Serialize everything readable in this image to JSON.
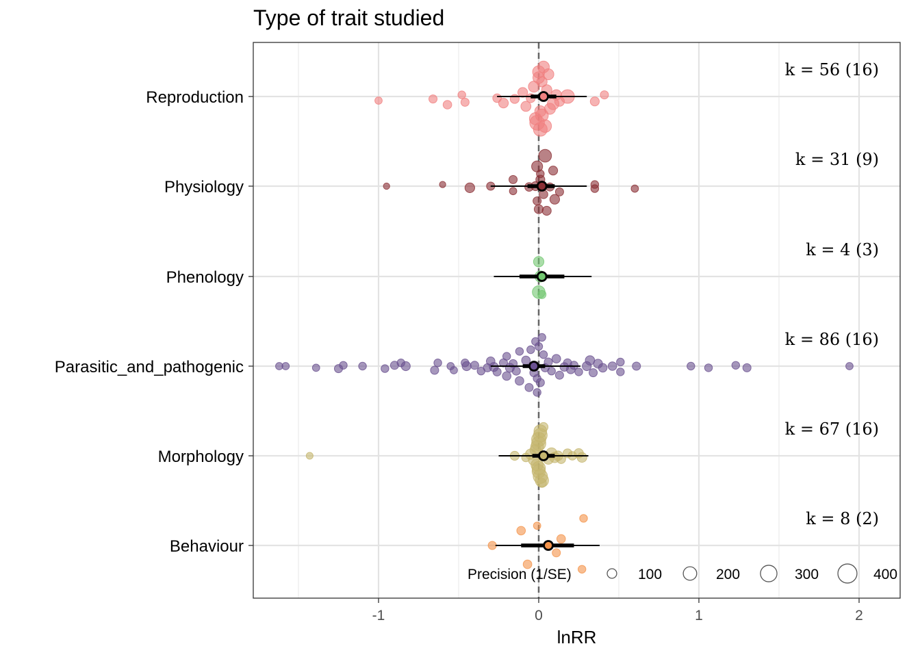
{
  "chart_data": {
    "type": "scatter",
    "subtype": "orchard-plot",
    "title": "Type of trait studied",
    "xlabel": "lnRR",
    "ylabel": "",
    "xlim": [
      -1.78,
      2.25
    ],
    "x_ticks": [
      -1,
      0,
      1,
      2
    ],
    "x_tick_labels": [
      "-1",
      "0",
      "1",
      "2"
    ],
    "grid": true,
    "reference_line": {
      "x": 0,
      "style": "dashed"
    },
    "categories": [
      "Reproduction",
      "Physiology",
      "Phenology",
      "Parasitic_and_pathogenic",
      "Morphology",
      "Behaviour"
    ],
    "series": [
      {
        "name": "Reproduction",
        "color": "#F08080",
        "k_label": "k = 56 (16)",
        "estimate": 0.03,
        "ci": [
          -0.05,
          0.11
        ],
        "pi": [
          -0.26,
          0.3
        ],
        "points": [
          [
            -1.0,
            0.5,
            40
          ],
          [
            -0.66,
            0.3,
            50
          ],
          [
            -0.57,
            1.0,
            55
          ],
          [
            -0.48,
            -0.2,
            45
          ],
          [
            -0.46,
            0.7,
            50
          ],
          [
            -0.26,
            0.2,
            55
          ],
          [
            -0.22,
            0.8,
            70
          ],
          [
            -0.15,
            0.3,
            60
          ],
          [
            -0.1,
            -0.5,
            70
          ],
          [
            -0.08,
            1.2,
            75
          ],
          [
            -0.05,
            0.2,
            60
          ],
          [
            -0.03,
            -1.2,
            90
          ],
          [
            -0.02,
            2.7,
            110
          ],
          [
            -0.01,
            3.2,
            160
          ],
          [
            0.0,
            -2.3,
            100
          ],
          [
            0.0,
            -3.0,
            110
          ],
          [
            0.01,
            4.0,
            140
          ],
          [
            0.01,
            1.8,
            90
          ],
          [
            0.02,
            -1.8,
            80
          ],
          [
            0.02,
            2.3,
            120
          ],
          [
            0.03,
            -3.6,
            100
          ],
          [
            0.04,
            3.6,
            120
          ],
          [
            0.05,
            -0.8,
            80
          ],
          [
            0.06,
            -2.7,
            90
          ],
          [
            0.07,
            1.5,
            90
          ],
          [
            0.09,
            0.9,
            100
          ],
          [
            0.11,
            -0.2,
            80
          ],
          [
            0.13,
            0.6,
            70
          ],
          [
            0.18,
            0.0,
            140
          ],
          [
            0.35,
            0.6,
            60
          ],
          [
            0.41,
            -0.2,
            50
          ]
        ]
      },
      {
        "name": "Physiology",
        "color": "#8B2F35",
        "k_label": "k = 31 (9)",
        "estimate": 0.02,
        "ci": [
          -0.07,
          0.1
        ],
        "pi": [
          -0.3,
          0.3
        ],
        "points": [
          [
            -0.95,
            0.0,
            30
          ],
          [
            -0.6,
            -0.2,
            30
          ],
          [
            -0.43,
            0.2,
            70
          ],
          [
            -0.3,
            0.0,
            50
          ],
          [
            -0.16,
            0.6,
            40
          ],
          [
            -0.16,
            -0.8,
            50
          ],
          [
            -0.06,
            0.1,
            55
          ],
          [
            -0.02,
            0.0,
            60
          ],
          [
            -0.01,
            -2.4,
            90
          ],
          [
            -0.01,
            1.8,
            50
          ],
          [
            0.0,
            2.8,
            60
          ],
          [
            0.01,
            -0.8,
            60
          ],
          [
            0.01,
            -1.5,
            45
          ],
          [
            0.03,
            1.0,
            55
          ],
          [
            0.04,
            -3.7,
            120
          ],
          [
            0.05,
            3.0,
            60
          ],
          [
            0.07,
            0.1,
            50
          ],
          [
            0.09,
            -1.9,
            60
          ],
          [
            0.1,
            1.6,
            70
          ],
          [
            0.13,
            0.7,
            50
          ],
          [
            0.35,
            0.3,
            45
          ],
          [
            0.35,
            -0.2,
            45
          ],
          [
            0.6,
            0.3,
            40
          ]
        ]
      },
      {
        "name": "Phenology",
        "color": "#72C770",
        "k_label": "k = 4 (3)",
        "estimate": 0.02,
        "ci": [
          -0.12,
          0.16
        ],
        "pi": [
          -0.28,
          0.33
        ],
        "points": [
          [
            0.0,
            1.9,
            120
          ],
          [
            0.0,
            -1.8,
            80
          ],
          [
            0.01,
            0.0,
            90
          ],
          [
            0.02,
            2.2,
            50
          ]
        ]
      },
      {
        "name": "Parasitic_and_pathogenic",
        "color": "#6A5190",
        "k_label": "k = 86 (16)",
        "estimate": -0.03,
        "ci": [
          -0.1,
          0.04
        ],
        "pi": [
          -0.3,
          0.26
        ],
        "points": [
          [
            -1.62,
            0.0,
            40
          ],
          [
            -1.58,
            0.0,
            40
          ],
          [
            -1.39,
            0.2,
            40
          ],
          [
            -1.25,
            0.3,
            50
          ],
          [
            -1.22,
            -0.1,
            45
          ],
          [
            -1.1,
            0.0,
            45
          ],
          [
            -0.96,
            0.3,
            45
          ],
          [
            -0.9,
            -0.1,
            50
          ],
          [
            -0.86,
            -0.4,
            45
          ],
          [
            -0.83,
            0.0,
            60
          ],
          [
            -0.65,
            0.5,
            50
          ],
          [
            -0.63,
            -0.4,
            45
          ],
          [
            -0.55,
            0.0,
            40
          ],
          [
            -0.53,
            0.5,
            40
          ],
          [
            -0.46,
            -0.4,
            45
          ],
          [
            -0.45,
            0.0,
            60
          ],
          [
            -0.4,
            -0.1,
            50
          ],
          [
            -0.36,
            0.6,
            45
          ],
          [
            -0.32,
            0.2,
            50
          ],
          [
            -0.3,
            -0.6,
            55
          ],
          [
            -0.28,
            0.1,
            60
          ],
          [
            -0.26,
            0.7,
            50
          ],
          [
            -0.22,
            -0.4,
            50
          ],
          [
            -0.2,
            1.2,
            55
          ],
          [
            -0.2,
            -1.2,
            45
          ],
          [
            -0.18,
            0.2,
            60
          ],
          [
            -0.16,
            -0.3,
            50
          ],
          [
            -0.14,
            0.6,
            50
          ],
          [
            -0.12,
            1.8,
            55
          ],
          [
            -0.12,
            -1.8,
            45
          ],
          [
            -0.08,
            -0.7,
            55
          ],
          [
            -0.06,
            2.6,
            50
          ],
          [
            -0.05,
            -2.0,
            45
          ],
          [
            -0.03,
            0.8,
            50
          ],
          [
            -0.02,
            -3.0,
            45
          ],
          [
            -0.01,
            3.2,
            45
          ],
          [
            -0.01,
            1.5,
            45
          ],
          [
            0.0,
            -2.4,
            45
          ],
          [
            0.01,
            2.0,
            50
          ],
          [
            0.02,
            -3.5,
            45
          ],
          [
            0.03,
            -1.4,
            45
          ],
          [
            0.04,
            0.2,
            50
          ],
          [
            0.06,
            -0.5,
            50
          ],
          [
            0.08,
            0.6,
            45
          ],
          [
            0.11,
            -0.9,
            55
          ],
          [
            0.13,
            1.1,
            50
          ],
          [
            0.16,
            0.1,
            55
          ],
          [
            0.18,
            -0.4,
            50
          ],
          [
            0.2,
            0.4,
            55
          ],
          [
            0.22,
            -0.1,
            50
          ],
          [
            0.25,
            0.7,
            45
          ],
          [
            0.3,
            0.0,
            60
          ],
          [
            0.32,
            -0.7,
            65
          ],
          [
            0.34,
            0.8,
            50
          ],
          [
            0.37,
            -0.3,
            60
          ],
          [
            0.4,
            0.2,
            55
          ],
          [
            0.46,
            0.0,
            55
          ],
          [
            0.51,
            0.7,
            45
          ],
          [
            0.51,
            -0.5,
            45
          ],
          [
            0.61,
            0.0,
            50
          ],
          [
            0.95,
            0.0,
            45
          ],
          [
            1.06,
            0.2,
            45
          ],
          [
            1.23,
            -0.1,
            45
          ],
          [
            1.3,
            0.2,
            50
          ],
          [
            1.94,
            0.0,
            40
          ]
        ]
      },
      {
        "name": "Morphology",
        "color": "#C4B56E",
        "k_label": "k = 67 (16)",
        "estimate": 0.03,
        "ci": [
          -0.04,
          0.1
        ],
        "pi": [
          -0.25,
          0.31
        ],
        "points": [
          [
            -1.43,
            0.0,
            35
          ],
          [
            -0.15,
            0.0,
            60
          ],
          [
            -0.08,
            0.2,
            55
          ],
          [
            -0.05,
            -0.2,
            80
          ],
          [
            -0.03,
            0.5,
            90
          ],
          [
            -0.02,
            -0.7,
            90
          ],
          [
            -0.01,
            1.1,
            110
          ],
          [
            -0.01,
            -1.1,
            120
          ],
          [
            0.0,
            1.5,
            130
          ],
          [
            0.0,
            -1.5,
            150
          ],
          [
            0.0,
            1.9,
            130
          ],
          [
            0.0,
            -2.0,
            150
          ],
          [
            0.01,
            2.5,
            150
          ],
          [
            0.01,
            -2.5,
            140
          ],
          [
            0.02,
            3.0,
            130
          ],
          [
            0.01,
            -3.0,
            120
          ],
          [
            0.02,
            3.3,
            60
          ],
          [
            0.03,
            -3.5,
            60
          ],
          [
            0.06,
            0.4,
            80
          ],
          [
            0.08,
            -0.3,
            90
          ],
          [
            0.1,
            0.2,
            80
          ],
          [
            0.12,
            0.0,
            70
          ],
          [
            0.14,
            0.4,
            60
          ],
          [
            0.18,
            -0.3,
            60
          ],
          [
            0.21,
            0.0,
            55
          ],
          [
            0.25,
            -0.3,
            65
          ],
          [
            0.27,
            0.2,
            70
          ]
        ]
      },
      {
        "name": "Behaviour",
        "color": "#F4934A",
        "k_label": "k = 8 (2)",
        "estimate": 0.06,
        "ci": [
          -0.11,
          0.22
        ],
        "pi": [
          -0.27,
          0.38
        ],
        "points": [
          [
            -0.29,
            0.0,
            50
          ],
          [
            -0.11,
            -1.8,
            55
          ],
          [
            -0.07,
            2.3,
            55
          ],
          [
            -0.01,
            -2.4,
            40
          ],
          [
            0.11,
            0.9,
            50
          ],
          [
            0.14,
            -0.8,
            55
          ],
          [
            0.27,
            2.9,
            45
          ],
          [
            0.28,
            -3.3,
            45
          ]
        ]
      }
    ],
    "size_legend": {
      "title": "Precision (1/SE)",
      "values": [
        100,
        200,
        300,
        400
      ],
      "labels": [
        "100",
        "200",
        "300",
        "400"
      ]
    }
  }
}
